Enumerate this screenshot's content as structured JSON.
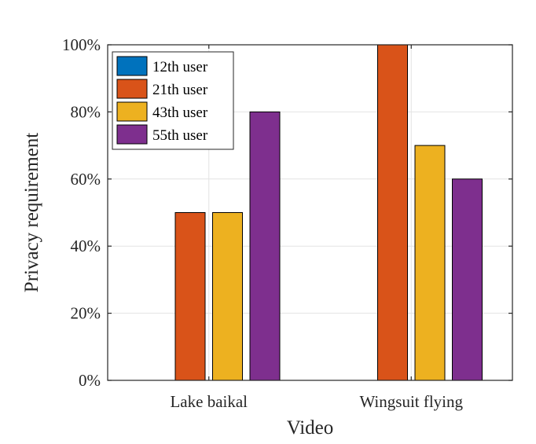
{
  "chart_data": {
    "type": "bar",
    "xlabel": "Video",
    "ylabel": "Privacy requirement",
    "categories": [
      "Lake baikal",
      "Wingsuit flying"
    ],
    "series": [
      {
        "name": "12th user",
        "values": [
          0,
          0
        ],
        "color": "#0072BD"
      },
      {
        "name": "21th user",
        "values": [
          50,
          100
        ],
        "color": "#D95319"
      },
      {
        "name": "43th user",
        "values": [
          50,
          70
        ],
        "color": "#EDB120"
      },
      {
        "name": "55th user",
        "values": [
          80,
          60
        ],
        "color": "#7E2F8E"
      }
    ],
    "ylim": [
      0,
      100
    ],
    "yticks": [
      0,
      20,
      40,
      60,
      80,
      100
    ],
    "ytick_labels": [
      "0%",
      "20%",
      "40%",
      "60%",
      "80%",
      "100%"
    ],
    "grid": true,
    "legend_position": "top-left"
  }
}
